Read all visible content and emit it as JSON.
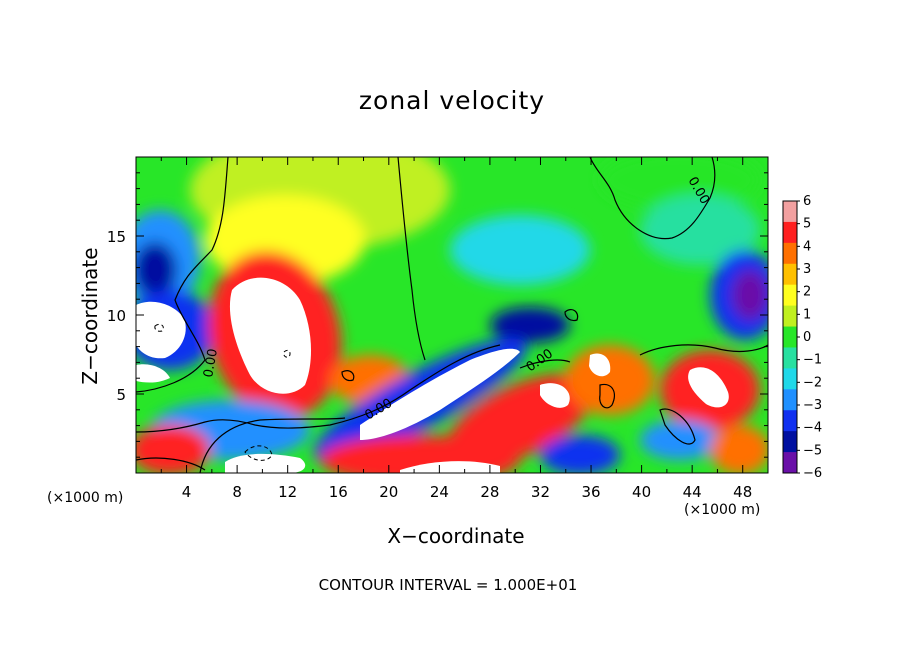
{
  "chart_data": {
    "type": "heatmap",
    "title": "zonal velocity",
    "xlabel": "X−coordinate",
    "ylabel": "Z−coordinate",
    "x_unit_left": "(×1000 m)",
    "x_unit_right": "(×1000 m)",
    "footnote": "CONTOUR INTERVAL = 1.000E+01",
    "xlim": [
      0,
      50
    ],
    "ylim": [
      0,
      20
    ],
    "x_ticks": [
      4,
      8,
      12,
      16,
      20,
      24,
      28,
      32,
      36,
      40,
      44,
      48
    ],
    "y_ticks": [
      5,
      10,
      15
    ],
    "x_tick_labels": [
      "4",
      "8",
      "12",
      "16",
      "20",
      "24",
      "28",
      "32",
      "36",
      "40",
      "44",
      "48"
    ],
    "y_tick_labels": [
      "5",
      "10",
      "15"
    ],
    "colorbar": {
      "range": [
        -6,
        6
      ],
      "tick_labels": [
        "6",
        "5",
        "4",
        "3",
        "2",
        "1",
        "0",
        "−1",
        "−2",
        "−3",
        "−4",
        "−5",
        "−6"
      ],
      "colors": [
        "#f2a0a0",
        "#ff2020",
        "#ff7000",
        "#ffc000",
        "#ffff20",
        "#c0f020",
        "#28e628",
        "#28e0a0",
        "#20d8e8",
        "#2090ff",
        "#1030f0",
        "#0010a0",
        "#6a10a8"
      ]
    },
    "contour_labels": [
      "0.00",
      "0.00",
      "0.00",
      "0.00"
    ]
  }
}
